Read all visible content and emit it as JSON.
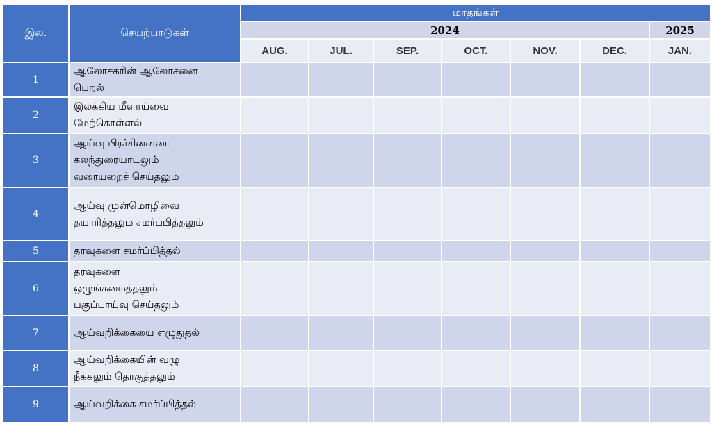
{
  "header": {
    "sno_label": "இல.",
    "activities_label": "செயற்பாடுகள்",
    "months_label": "மாதங்கள்",
    "year_2024": "2024",
    "year_2025": "2025"
  },
  "months": [
    "AUG.",
    "JUL.",
    "SEP.",
    "OCT.",
    "NOV.",
    "DEC.",
    "JAN."
  ],
  "rows": [
    {
      "num": "1",
      "lines": [
        "ஆலோசகரின் ஆலோசனை",
        "பெறல்"
      ]
    },
    {
      "num": "2",
      "lines": [
        "இலக்கிய மீளாய்வை",
        "மேற்கொள்ளல்"
      ]
    },
    {
      "num": "3",
      "lines": [
        "ஆய்வு பிரச்சினையை",
        "கலந்துரையாடலும்",
        "வரையறைச் செய்தலும்"
      ]
    },
    {
      "num": "4",
      "lines": [
        "ஆய்வு முன்மொழிவை",
        "தயாரித்தலும் சமர்ப்பித்தலும்"
      ]
    },
    {
      "num": "5",
      "lines": [
        "தரவுகளை சமர்ப்பித்தல்"
      ]
    },
    {
      "num": "6",
      "lines": [
        "தரவுகளை",
        "ஒழுங்கமைத்தலும்",
        "பகுப்பாய்வு செய்தலும்"
      ]
    },
    {
      "num": "7",
      "lines": [
        "ஆய்வறிக்கையை எழுதுதல்"
      ]
    },
    {
      "num": "8",
      "lines": [
        "ஆய்வறிக்கையின் வழு",
        "நீக்கலும் தொகுத்தலும்"
      ]
    },
    {
      "num": "9",
      "lines": [
        "ஆய்வறிக்கை சமர்ப்பித்தல்"
      ]
    }
  ]
}
